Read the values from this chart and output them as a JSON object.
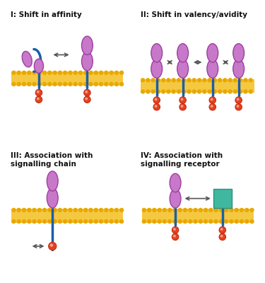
{
  "bg_color": "#ffffff",
  "membrane_color": "#f5c842",
  "membrane_dot_color": "#e8a800",
  "stem_color": "#1a5fa8",
  "ellipse_face": "#c878c8",
  "ellipse_edge": "#9b3fa0",
  "signal_face": "#e84020",
  "signal_edge": "#c03010",
  "teal_face": "#40b8a0",
  "teal_edge": "#2a9080",
  "arrow_color": "#555555",
  "text_color": "#111111",
  "panels": [
    {
      "label": "I: Shift in affinity"
    },
    {
      "label": "II: Shift in valency/avidity"
    },
    {
      "label": "III: Association with\nsignalling chain"
    },
    {
      "label": "IV: Association with\nsignalling receptor"
    }
  ]
}
